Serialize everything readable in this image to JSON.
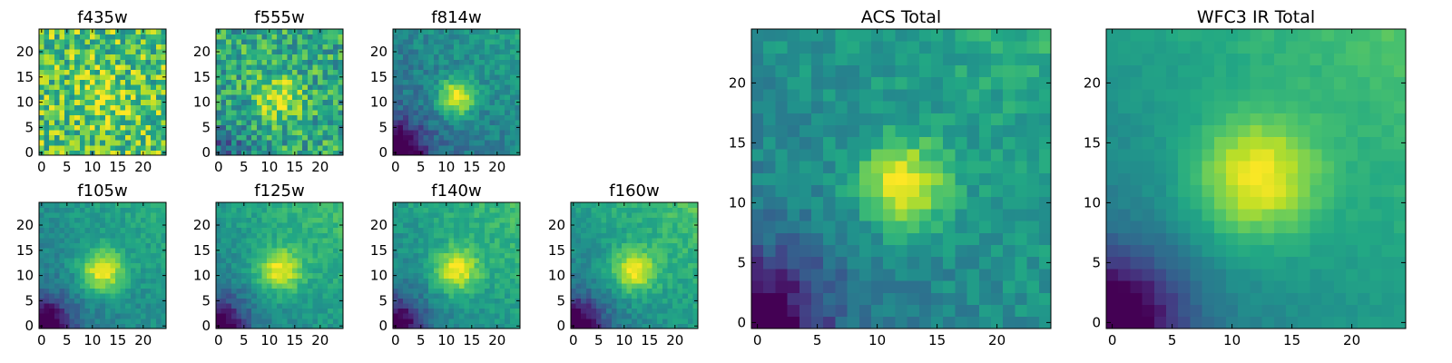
{
  "figure": {
    "background": "#ffffff"
  },
  "chart_data": [
    {
      "type": "heatmap",
      "title": "f435w",
      "xlabel": "",
      "ylabel": "",
      "xlim": [
        -0.5,
        24.5
      ],
      "ylim": [
        -0.5,
        24.5
      ],
      "xticks": [
        0,
        5,
        10,
        15,
        20
      ],
      "yticks": [
        0,
        5,
        10,
        15,
        20
      ],
      "grid_size": [
        25,
        25
      ],
      "colormap": "viridis",
      "center": [
        12,
        11
      ],
      "peak": 0.72,
      "sigma": 3,
      "background": 0.72,
      "gradient": 0.0,
      "noise": 0.55,
      "dark_corner": 0.0,
      "seed": 1
    },
    {
      "type": "heatmap",
      "title": "f555w",
      "xlabel": "",
      "ylabel": "",
      "xlim": [
        -0.5,
        24.5
      ],
      "ylim": [
        -0.5,
        24.5
      ],
      "xticks": [
        0,
        5,
        10,
        15,
        20
      ],
      "yticks": [
        0,
        5,
        10,
        15,
        20
      ],
      "grid_size": [
        25,
        25
      ],
      "colormap": "viridis",
      "center": [
        12,
        11
      ],
      "peak": 0.9,
      "sigma": 3,
      "background": 0.6,
      "gradient": 0.0,
      "noise": 0.45,
      "dark_corner": 0.3,
      "seed": 2
    },
    {
      "type": "heatmap",
      "title": "f814w",
      "xlabel": "",
      "ylabel": "",
      "xlim": [
        -0.5,
        24.5
      ],
      "ylim": [
        -0.5,
        24.5
      ],
      "xticks": [
        0,
        5,
        10,
        15,
        20
      ],
      "yticks": [
        0,
        5,
        10,
        15,
        20
      ],
      "grid_size": [
        25,
        25
      ],
      "colormap": "viridis",
      "center": [
        12,
        11
      ],
      "peak": 1.0,
      "sigma": 2.5,
      "background": 0.45,
      "gradient": 0.25,
      "noise": 0.2,
      "dark_corner": 0.55,
      "seed": 3
    },
    {
      "type": "heatmap",
      "title": "f105w",
      "xlabel": "",
      "ylabel": "",
      "xlim": [
        -0.5,
        24.5
      ],
      "ylim": [
        -0.5,
        24.5
      ],
      "xticks": [
        0,
        5,
        10,
        15,
        20
      ],
      "yticks": [
        0,
        5,
        10,
        15,
        20
      ],
      "grid_size": [
        25,
        25
      ],
      "colormap": "viridis",
      "center": [
        12,
        11
      ],
      "peak": 1.0,
      "sigma": 3,
      "background": 0.5,
      "gradient": 0.25,
      "noise": 0.15,
      "dark_corner": 0.55,
      "seed": 4
    },
    {
      "type": "heatmap",
      "title": "f125w",
      "xlabel": "",
      "ylabel": "",
      "xlim": [
        -0.5,
        24.5
      ],
      "ylim": [
        -0.5,
        24.5
      ],
      "xticks": [
        0,
        5,
        10,
        15,
        20
      ],
      "yticks": [
        0,
        5,
        10,
        15,
        20
      ],
      "grid_size": [
        25,
        25
      ],
      "colormap": "viridis",
      "center": [
        12,
        11
      ],
      "peak": 1.0,
      "sigma": 3,
      "background": 0.55,
      "gradient": 0.3,
      "noise": 0.15,
      "dark_corner": 0.5,
      "seed": 5
    },
    {
      "type": "heatmap",
      "title": "f140w",
      "xlabel": "",
      "ylabel": "",
      "xlim": [
        -0.5,
        24.5
      ],
      "ylim": [
        -0.5,
        24.5
      ],
      "xticks": [
        0,
        5,
        10,
        15,
        20
      ],
      "yticks": [
        0,
        5,
        10,
        15,
        20
      ],
      "grid_size": [
        25,
        25
      ],
      "colormap": "viridis",
      "center": [
        12,
        11
      ],
      "peak": 1.0,
      "sigma": 3,
      "background": 0.55,
      "gradient": 0.3,
      "noise": 0.15,
      "dark_corner": 0.5,
      "seed": 6
    },
    {
      "type": "heatmap",
      "title": "f160w",
      "xlabel": "",
      "ylabel": "",
      "xlim": [
        -0.5,
        24.5
      ],
      "ylim": [
        -0.5,
        24.5
      ],
      "xticks": [
        0,
        5,
        10,
        15,
        20
      ],
      "yticks": [
        0,
        5,
        10,
        15,
        20
      ],
      "grid_size": [
        25,
        25
      ],
      "colormap": "viridis",
      "center": [
        12,
        11
      ],
      "peak": 1.0,
      "sigma": 3,
      "background": 0.55,
      "gradient": 0.35,
      "noise": 0.15,
      "dark_corner": 0.55,
      "seed": 7
    },
    {
      "type": "heatmap",
      "title": "ACS Total",
      "xlabel": "",
      "ylabel": "",
      "xlim": [
        -0.5,
        24.5
      ],
      "ylim": [
        -0.5,
        24.5
      ],
      "xticks": [
        0,
        5,
        10,
        15,
        20
      ],
      "yticks": [
        0,
        5,
        10,
        15,
        20
      ],
      "grid_size": [
        25,
        25
      ],
      "colormap": "viridis",
      "center": [
        12,
        11.5
      ],
      "peak": 1.0,
      "sigma": 2.5,
      "background": 0.5,
      "gradient": 0.25,
      "noise": 0.18,
      "dark_corner": 0.5,
      "seed": 8
    },
    {
      "type": "heatmap",
      "title": "WFC3 IR Total",
      "xlabel": "",
      "ylabel": "",
      "xlim": [
        -0.5,
        24.5
      ],
      "ylim": [
        -0.5,
        24.5
      ],
      "xticks": [
        0,
        5,
        10,
        15,
        20
      ],
      "yticks": [
        0,
        5,
        10,
        15,
        20
      ],
      "grid_size": [
        25,
        25
      ],
      "colormap": "viridis",
      "center": [
        12,
        12
      ],
      "peak": 1.0,
      "sigma": 3.5,
      "background": 0.55,
      "gradient": 0.35,
      "noise": 0.06,
      "dark_corner": 0.55,
      "seed": 9
    }
  ]
}
